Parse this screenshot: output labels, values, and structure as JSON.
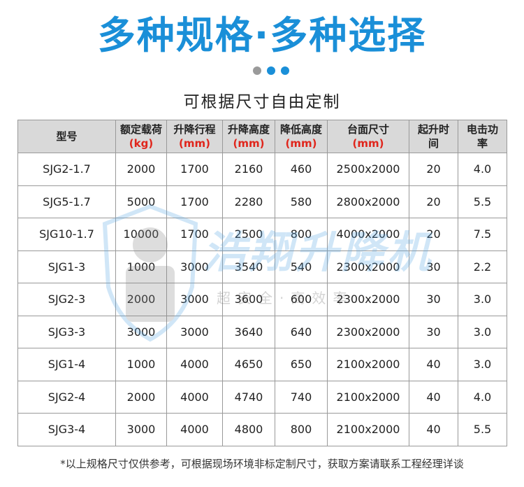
{
  "header": {
    "title": "多种规格·多种选择",
    "subtitle": "可根据尺寸自由定制"
  },
  "table": {
    "columns": [
      {
        "label": "型号"
      },
      {
        "label": "额定载荷",
        "unit": "(kg)"
      },
      {
        "label": "升降行程",
        "unit": "(mm)"
      },
      {
        "label": "升降高度",
        "unit": "(mm)"
      },
      {
        "label": "降低高度",
        "unit": "(mm)"
      },
      {
        "label": "台面尺寸",
        "unit": "(mm)"
      },
      {
        "label": "起升时间"
      },
      {
        "label": "电击功率"
      }
    ],
    "rows": [
      [
        "SJG2-1.7",
        "2000",
        "1700",
        "2160",
        "460",
        "2500x2000",
        "20",
        "4.0"
      ],
      [
        "SJG5-1.7",
        "5000",
        "1700",
        "2280",
        "580",
        "2800x2000",
        "20",
        "5.5"
      ],
      [
        "SJG10-1.7",
        "10000",
        "1700",
        "2500",
        "800",
        "4000x2000",
        "20",
        "7.5"
      ],
      [
        "SJG1-3",
        "1000",
        "3000",
        "3540",
        "540",
        "2300x2000",
        "30",
        "2.2"
      ],
      [
        "SJG2-3",
        "2000",
        "3000",
        "3600",
        "600",
        "2300x2000",
        "30",
        "3.0"
      ],
      [
        "SJG3-3",
        "3000",
        "3000",
        "3640",
        "640",
        "2300x2000",
        "30",
        "3.0"
      ],
      [
        "SJG1-4",
        "1000",
        "4000",
        "4650",
        "650",
        "2100x2000",
        "40",
        "3.0"
      ],
      [
        "SJG2-4",
        "2000",
        "4000",
        "4740",
        "740",
        "2100x2000",
        "40",
        "4.0"
      ],
      [
        "SJG3-4",
        "3000",
        "4000",
        "4800",
        "800",
        "2100x2000",
        "40",
        "5.5"
      ]
    ]
  },
  "watermark": {
    "brand": "浩翔升降机",
    "slogan": "超安全·高效率"
  },
  "footnote": "*以上规格尺寸仅供参考，可根据现场环境非标定制尺寸，获取方案请联系工程经理详谈"
}
